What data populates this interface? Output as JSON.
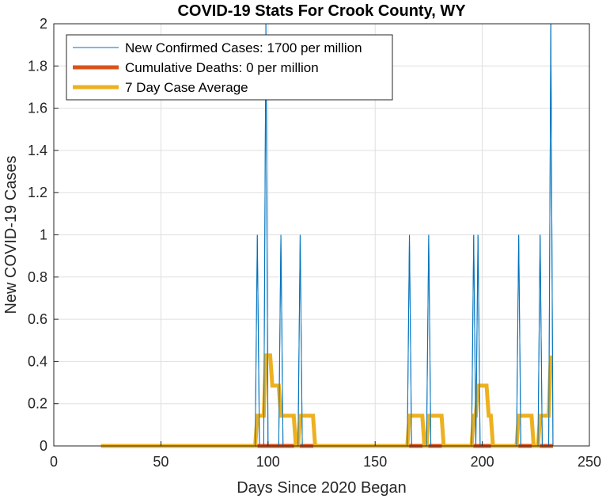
{
  "chart_data": {
    "type": "line",
    "title": "COVID-19 Stats For Crook County, WY",
    "xlabel": "Days Since 2020 Began",
    "ylabel": "New COVID-19 Cases",
    "xlim": [
      0,
      250
    ],
    "ylim": [
      0,
      2
    ],
    "xticks": [
      0,
      50,
      100,
      150,
      200,
      250
    ],
    "yticks": [
      0,
      0.2,
      0.4,
      0.6,
      0.8,
      1,
      1.2,
      1.4,
      1.6,
      1.8,
      2
    ],
    "ytick_labels": [
      "0",
      "0.2",
      "0.4",
      "0.6",
      "0.8",
      "1",
      "1.2",
      "1.4",
      "1.6",
      "1.8",
      "2"
    ],
    "grid": true,
    "legend_position": "top-left",
    "colors": {
      "new_cases": "#0072BD",
      "deaths": "#D95319",
      "average": "#EDB120"
    },
    "series": [
      {
        "name": "New Confirmed Cases: 1700 per million",
        "key": "new_cases",
        "x_start": 22,
        "x_end": 233,
        "spikes": [
          [
            95,
            1
          ],
          [
            99,
            2
          ],
          [
            106,
            1
          ],
          [
            115,
            1
          ],
          [
            166,
            1
          ],
          [
            175,
            1
          ],
          [
            196,
            1
          ],
          [
            198,
            1
          ],
          [
            217,
            1
          ],
          [
            227,
            1
          ],
          [
            232,
            2
          ]
        ]
      },
      {
        "name": "Cumulative Deaths: 0 per million",
        "key": "deaths",
        "x": [
          95,
          233
        ],
        "y": [
          0,
          0
        ]
      },
      {
        "name": "7 Day Case Average",
        "key": "average",
        "x": [
          22,
          94,
          95,
          98,
          99,
          101,
          102,
          105,
          106,
          112,
          113,
          114,
          115,
          121,
          122,
          165,
          166,
          172,
          173,
          174,
          175,
          181,
          182,
          195,
          196,
          197,
          198,
          202,
          203,
          204,
          205,
          216,
          217,
          223,
          224,
          226,
          227,
          231,
          232
        ],
        "y": [
          0,
          0,
          0.1429,
          0.1429,
          0.4286,
          0.4286,
          0.2857,
          0.2857,
          0.1429,
          0.1429,
          0,
          0,
          0.1429,
          0.1429,
          0,
          0,
          0.1429,
          0.1429,
          0,
          0,
          0.1429,
          0.1429,
          0,
          0,
          0.1429,
          0.1429,
          0.2857,
          0.2857,
          0.1429,
          0.1429,
          0,
          0,
          0.1429,
          0.1429,
          0,
          0,
          0.1429,
          0.1429,
          0.4286
        ]
      }
    ]
  }
}
